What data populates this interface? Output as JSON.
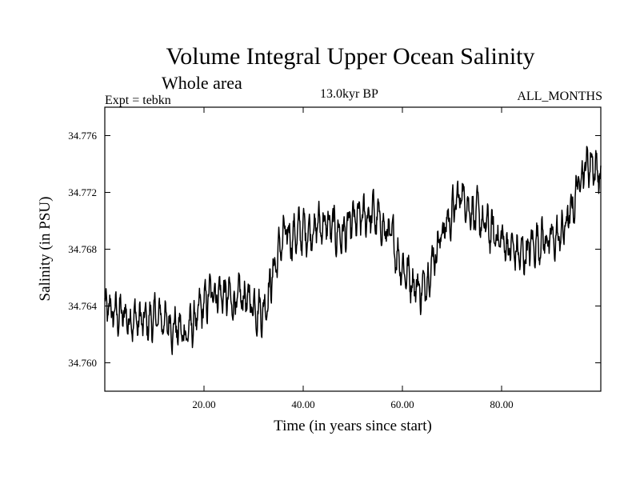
{
  "chart_data": {
    "type": "line",
    "title": "Volume Integral Upper Ocean Salinity",
    "subtitle": "Whole area",
    "experiment_label": "Expt = tebkn",
    "epoch_label": "13.0kyr BP",
    "months_label": "ALL_MONTHS",
    "xlabel": "Time (in years since start)",
    "ylabel": "Salinity (in PSU)",
    "xlim": [
      0,
      100
    ],
    "ylim": [
      34.758,
      34.778
    ],
    "xticks": [
      20,
      40,
      60,
      80
    ],
    "xtick_labels": [
      "20.00",
      "40.00",
      "60.00",
      "80.00"
    ],
    "yticks": [
      34.76,
      34.764,
      34.768,
      34.772,
      34.776
    ],
    "ytick_labels": [
      "34.760",
      "34.764",
      "34.768",
      "34.772",
      "34.776"
    ],
    "grid": false,
    "series": [
      {
        "name": "salinity",
        "color": "#000000",
        "trend_x": [
          0,
          2,
          5,
          8,
          11,
          14,
          16,
          18,
          20,
          22,
          24,
          26,
          28,
          30,
          32,
          34,
          36,
          40,
          44,
          48,
          50,
          54,
          56,
          58,
          60,
          62,
          64,
          66,
          68,
          70,
          72,
          74,
          76,
          78,
          80,
          82,
          84,
          86,
          88,
          90,
          92,
          94,
          96,
          98,
          100
        ],
        "trend_y": [
          34.7637,
          34.7635,
          34.7632,
          34.7628,
          34.7632,
          34.7626,
          34.762,
          34.7628,
          34.764,
          34.7652,
          34.7648,
          34.7642,
          34.7646,
          34.7642,
          34.7636,
          34.7665,
          34.7688,
          34.7692,
          34.7698,
          34.769,
          34.7698,
          34.7705,
          34.7696,
          34.7686,
          34.7668,
          34.7658,
          34.765,
          34.7672,
          34.7692,
          34.7705,
          34.772,
          34.7708,
          34.7698,
          34.7692,
          34.7686,
          34.768,
          34.7675,
          34.7682,
          34.7688,
          34.7685,
          34.769,
          34.7705,
          34.7735,
          34.7742,
          34.7732
        ]
      }
    ]
  }
}
